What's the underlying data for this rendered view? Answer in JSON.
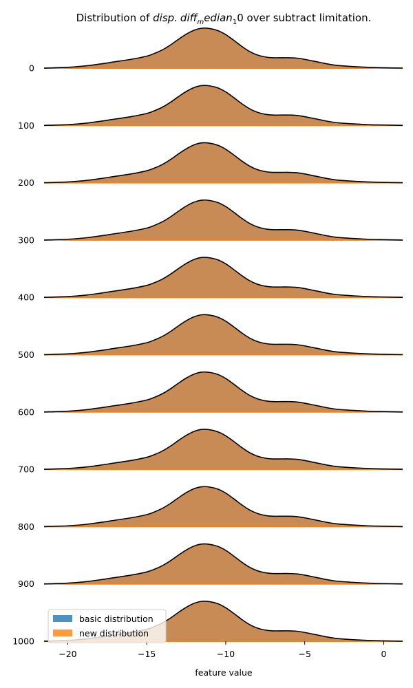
{
  "chart_data": {
    "type": "area",
    "title_parts": {
      "prefix": "Distribution of ",
      "sym1": "disp.",
      "sym2": "diff",
      "sub1": "m",
      "sym3": "edian",
      "sub2": "1",
      "suffix": "0 over subtract limitation."
    },
    "xlabel": "feature value",
    "xlim": [
      -21.5,
      1.2
    ],
    "x_ticks": [
      -20,
      -15,
      -10,
      -5,
      0
    ],
    "x_tick_labels": [
      "−20",
      "−15",
      "−10",
      "−5",
      "0"
    ],
    "rows": [
      0,
      100,
      200,
      300,
      400,
      500,
      600,
      700,
      800,
      900,
      1000
    ],
    "row_labels": [
      "0",
      "100",
      "200",
      "300",
      "400",
      "500",
      "600",
      "700",
      "800",
      "900",
      "1000"
    ],
    "ridge_height": 58,
    "ridge_x": [
      -21.5,
      -20,
      -19,
      -18,
      -17,
      -16,
      -15,
      -14.5,
      -14,
      -13.5,
      -13,
      -12.5,
      -12,
      -11.5,
      -11,
      -10.5,
      -10,
      -9.5,
      -9,
      -8.5,
      -8,
      -7.5,
      -7,
      -6.5,
      -6,
      -5.5,
      -5,
      -4.5,
      -4,
      -3.5,
      -3,
      -2,
      -1,
      0,
      1.2
    ],
    "ridge_y": [
      0.0,
      0.02,
      0.05,
      0.1,
      0.16,
      0.22,
      0.3,
      0.37,
      0.46,
      0.58,
      0.72,
      0.85,
      0.95,
      1.0,
      0.99,
      0.94,
      0.84,
      0.7,
      0.55,
      0.42,
      0.33,
      0.28,
      0.26,
      0.26,
      0.26,
      0.25,
      0.22,
      0.18,
      0.14,
      0.1,
      0.07,
      0.04,
      0.02,
      0.01,
      0.0
    ],
    "series": [
      {
        "name": "basic distribution",
        "color": "#1f77b4"
      },
      {
        "name": "new distribution",
        "color": "#ff7f0e"
      }
    ],
    "overlap_fill": "#c98b55",
    "outline_color": "#000000",
    "legend_position": "lower-left",
    "grid": false
  }
}
